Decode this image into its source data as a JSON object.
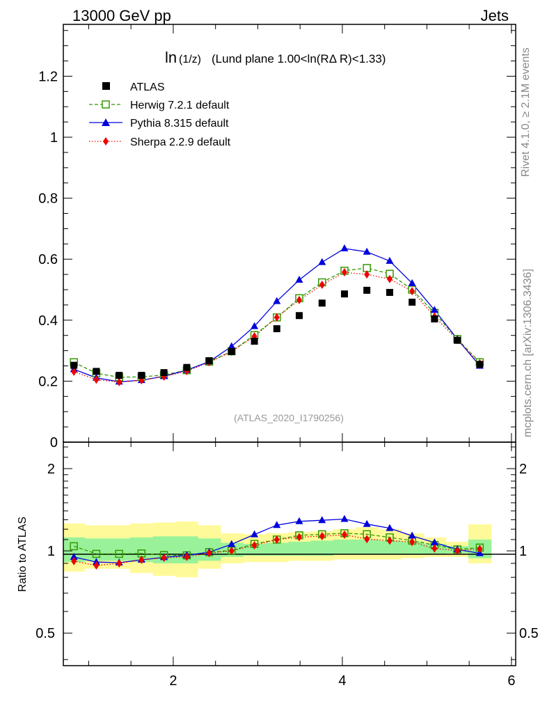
{
  "header": {
    "left": "13000 GeV pp",
    "right": "Jets"
  },
  "side_labels": {
    "rivet": "Rivet 4.1.0, ≥ 2.1M events",
    "mcplots": "mcplots.cern.ch [arXiv:1306.3436]"
  },
  "chart_data": [
    {
      "type": "line",
      "title_main": "ln",
      "title_frac": "(1/z)",
      "title_rest": "(Lund plane 1.00<ln(RΔ R)<1.33)",
      "watermark": "(ATLAS_2020_I1790256)",
      "xlim": [
        0.7,
        6.05
      ],
      "ylim": [
        0,
        1.37
      ],
      "y_ticks": [
        0,
        0.2,
        0.4,
        0.6,
        0.8,
        1,
        1.2
      ],
      "y_tick_labels": [
        "0",
        "0.2",
        "0.4",
        "0.6",
        "0.8",
        "1",
        "1.2"
      ],
      "x": [
        0.825,
        1.09,
        1.36,
        1.625,
        1.89,
        2.16,
        2.425,
        2.69,
        2.96,
        3.225,
        3.49,
        3.76,
        4.025,
        4.29,
        4.56,
        4.825,
        5.09,
        5.36,
        5.625
      ],
      "series": [
        {
          "name": "ATLAS",
          "key": "atlas",
          "color": "#000000",
          "values": [
            0.252,
            0.232,
            0.219,
            0.219,
            0.228,
            0.245,
            0.267,
            0.297,
            0.331,
            0.372,
            0.415,
            0.456,
            0.486,
            0.498,
            0.491,
            0.459,
            0.404,
            0.334,
            0.255
          ]
        },
        {
          "name": "Herwig 7.2.1 default",
          "key": "herwig",
          "color": "#339900",
          "values": [
            0.262,
            0.226,
            0.213,
            0.214,
            0.22,
            0.236,
            0.264,
            0.298,
            0.351,
            0.409,
            0.472,
            0.524,
            0.562,
            0.571,
            0.552,
            0.5,
            0.424,
            0.338,
            0.262
          ]
        },
        {
          "name": "Pythia 8.315 default",
          "key": "pythia",
          "color": "#0000dd",
          "values": [
            0.239,
            0.211,
            0.198,
            0.203,
            0.216,
            0.236,
            0.264,
            0.314,
            0.38,
            0.462,
            0.532,
            0.59,
            0.635,
            0.624,
            0.594,
            0.521,
            0.433,
            0.338,
            0.25
          ]
        },
        {
          "name": "Sherpa 2.2.9 default",
          "key": "sherpa",
          "color": "#ee0000",
          "values": [
            0.231,
            0.205,
            0.197,
            0.203,
            0.215,
            0.233,
            0.262,
            0.297,
            0.347,
            0.409,
            0.466,
            0.516,
            0.557,
            0.55,
            0.535,
            0.495,
            0.412,
            0.335,
            0.259
          ]
        }
      ]
    },
    {
      "type": "line",
      "ylabel": "Ratio to ATLAS",
      "xlim": [
        0.7,
        6.05
      ],
      "ylim": [
        0.38,
        2.5
      ],
      "log_y": true,
      "x_ticks": [
        2,
        4,
        6
      ],
      "x_tick_labels": [
        "2",
        "4",
        "6"
      ],
      "y_ticks": [
        0.5,
        1,
        2
      ],
      "y_tick_labels": [
        "0.5",
        "1",
        "2"
      ],
      "x": [
        0.825,
        1.09,
        1.36,
        1.625,
        1.89,
        2.16,
        2.425,
        2.69,
        2.96,
        3.225,
        3.49,
        3.76,
        4.025,
        4.29,
        4.56,
        4.825,
        5.09,
        5.36,
        5.625
      ],
      "bin_edges": [
        0.7,
        0.95,
        1.225,
        1.49,
        1.76,
        2.025,
        2.29,
        2.56,
        2.825,
        3.09,
        3.36,
        3.625,
        3.89,
        4.16,
        4.425,
        4.69,
        4.96,
        5.225,
        5.49,
        5.76
      ],
      "band_yellow_lo": [
        0.84,
        0.86,
        0.86,
        0.83,
        0.81,
        0.8,
        0.86,
        0.9,
        0.91,
        0.91,
        0.92,
        0.92,
        0.93,
        0.93,
        0.93,
        0.94,
        0.95,
        0.95,
        0.9
      ],
      "band_yellow_hi": [
        1.26,
        1.24,
        1.24,
        1.26,
        1.27,
        1.28,
        1.24,
        1.16,
        1.15,
        1.16,
        1.17,
        1.18,
        1.2,
        1.22,
        1.2,
        1.16,
        1.12,
        1.08,
        1.25
      ],
      "band_green_lo": [
        0.91,
        0.92,
        0.92,
        0.91,
        0.9,
        0.9,
        0.92,
        0.95,
        0.96,
        0.96,
        0.96,
        0.96,
        0.97,
        0.97,
        0.97,
        0.97,
        0.97,
        0.98,
        0.94
      ],
      "band_green_hi": [
        1.12,
        1.11,
        1.11,
        1.12,
        1.13,
        1.13,
        1.11,
        1.07,
        1.06,
        1.07,
        1.08,
        1.09,
        1.1,
        1.1,
        1.09,
        1.08,
        1.06,
        1.04,
        1.1
      ],
      "series": [
        {
          "name": "Herwig 7.2.1 default",
          "key": "herwig",
          "color": "#339900",
          "values": [
            1.04,
            0.975,
            0.975,
            0.978,
            0.965,
            0.963,
            0.989,
            1.003,
            1.06,
            1.1,
            1.14,
            1.15,
            1.16,
            1.15,
            1.12,
            1.09,
            1.05,
            1.012,
            1.028
          ]
        },
        {
          "name": "Pythia 8.315 default",
          "key": "pythia",
          "color": "#0000dd",
          "values": [
            0.949,
            0.91,
            0.905,
            0.927,
            0.947,
            0.963,
            0.989,
            1.057,
            1.148,
            1.242,
            1.282,
            1.294,
            1.307,
            1.253,
            1.21,
            1.135,
            1.072,
            1.012,
            0.98
          ]
        },
        {
          "name": "Sherpa 2.2.9 default",
          "key": "sherpa",
          "color": "#ee0000",
          "values": [
            0.917,
            0.884,
            0.9,
            0.927,
            0.943,
            0.951,
            0.981,
            1.0,
            1.048,
            1.099,
            1.123,
            1.132,
            1.146,
            1.104,
            1.09,
            1.078,
            1.02,
            1.003,
            1.016
          ]
        }
      ]
    }
  ]
}
